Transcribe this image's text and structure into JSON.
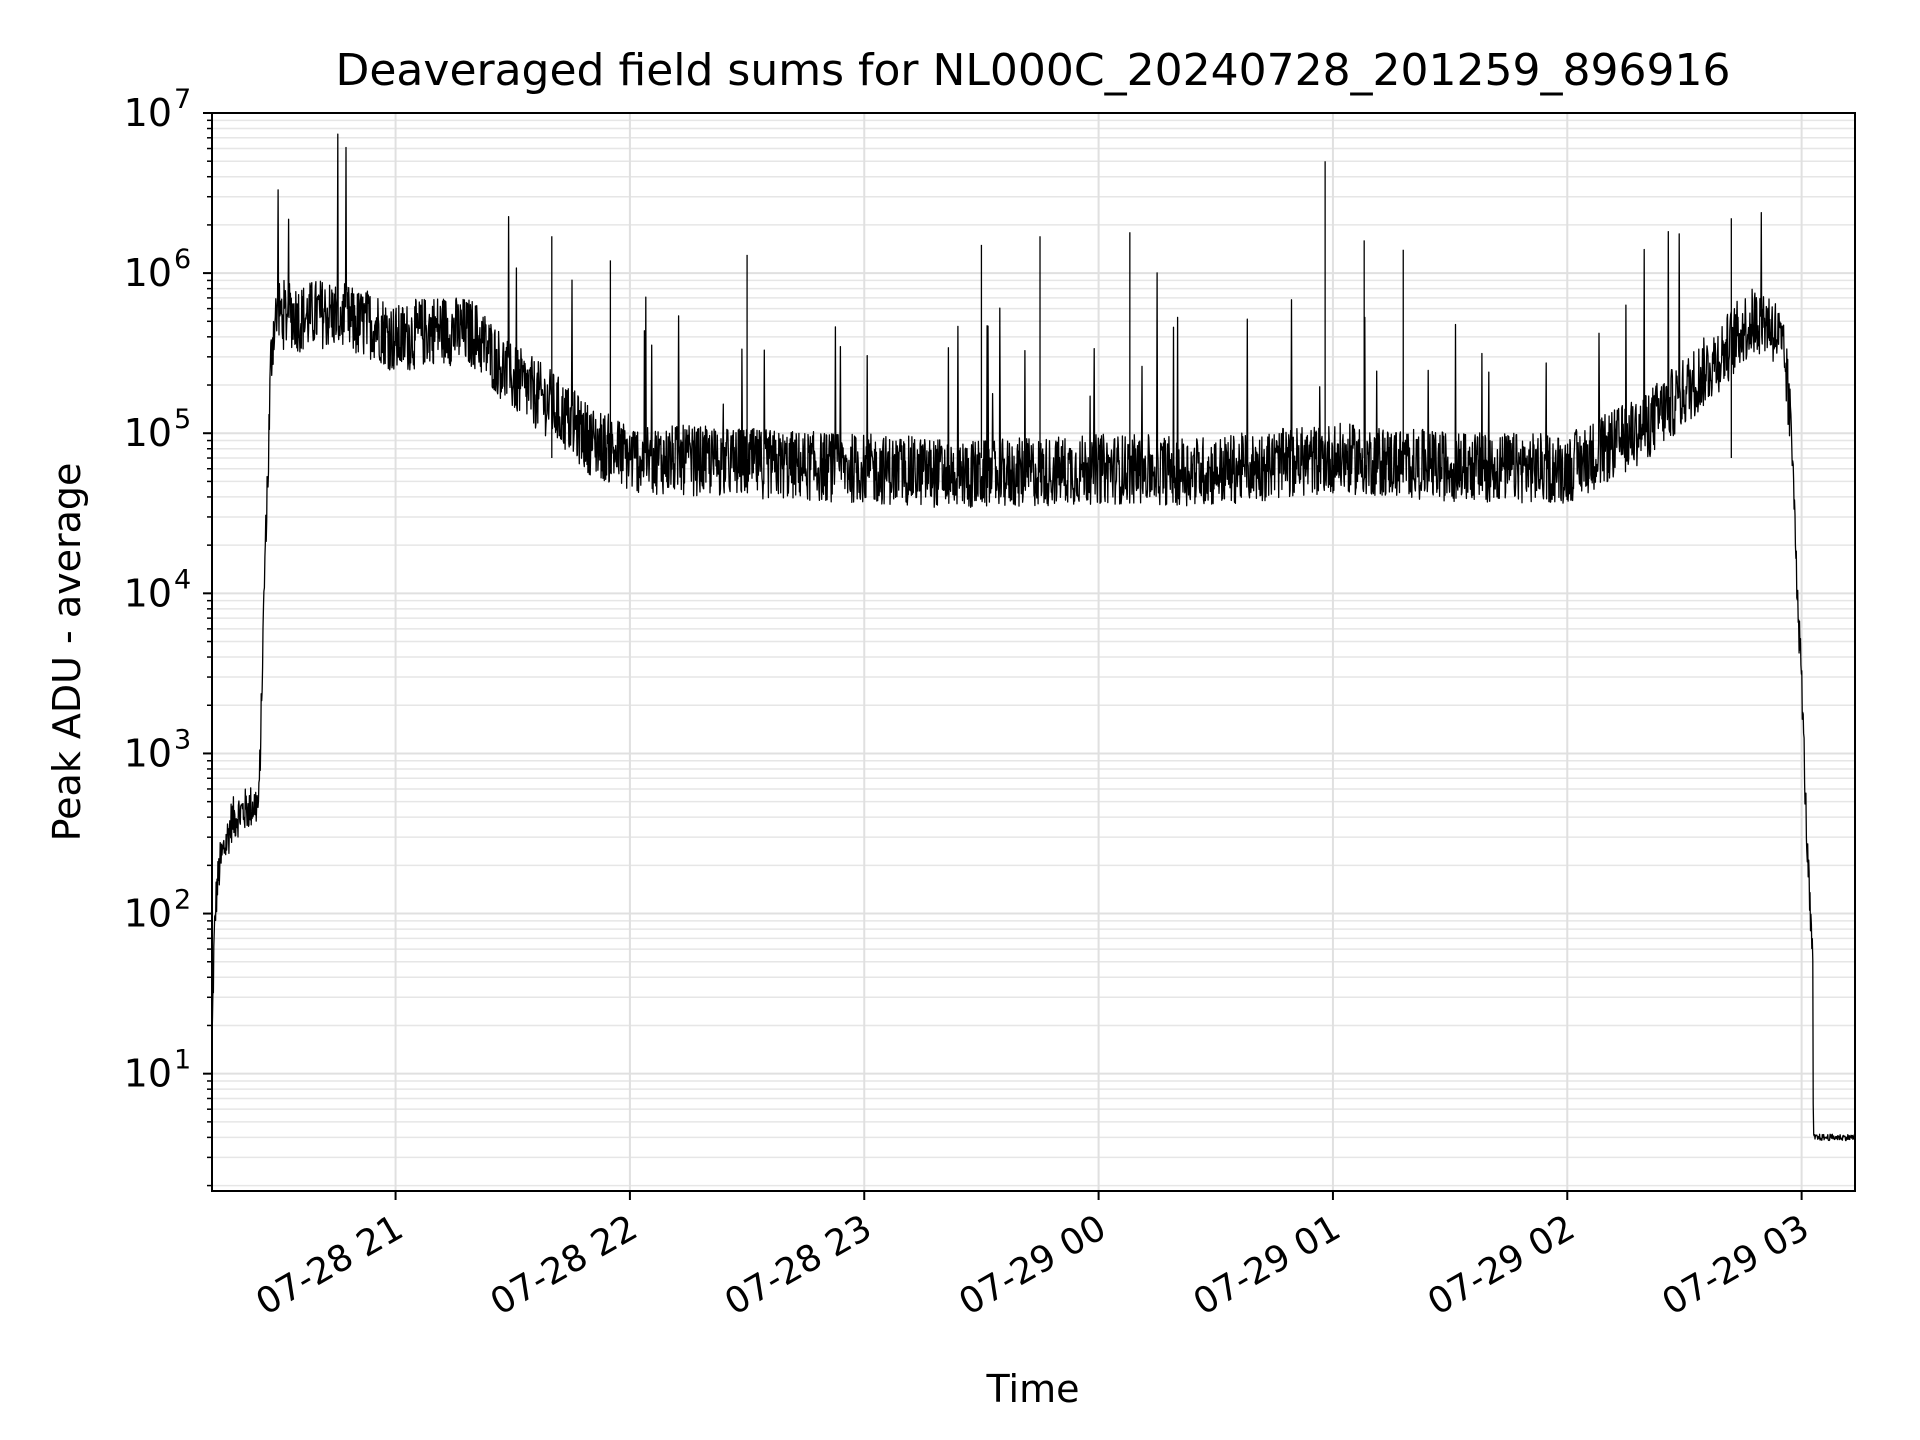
{
  "chart_data": {
    "type": "line",
    "title": "Deaveraged field sums for NL000C_20240728_201259_896916",
    "xlabel": "Time",
    "ylabel": "Peak ADU - average",
    "yscale": "log",
    "ylim": [
      1.85,
      10000000
    ],
    "xlim": [
      "2024-07-28 20:13:00",
      "2024-07-29 03:13:40"
    ],
    "grid": true,
    "line_color": "#000000",
    "x_ticks": [
      {
        "value": "2024-07-28 21:00",
        "label": "07-28 21"
      },
      {
        "value": "2024-07-28 22:00",
        "label": "07-28 22"
      },
      {
        "value": "2024-07-28 23:00",
        "label": "07-28 23"
      },
      {
        "value": "2024-07-29 00:00",
        "label": "07-29 00"
      },
      {
        "value": "2024-07-29 01:00",
        "label": "07-29 01"
      },
      {
        "value": "2024-07-29 02:00",
        "label": "07-29 02"
      },
      {
        "value": "2024-07-29 03:00",
        "label": "07-29 03"
      }
    ],
    "y_ticks": [
      {
        "value": 10,
        "base": "10",
        "exp": "1"
      },
      {
        "value": 100,
        "base": "10",
        "exp": "2"
      },
      {
        "value": 1000,
        "base": "10",
        "exp": "3"
      },
      {
        "value": 10000,
        "base": "10",
        "exp": "4"
      },
      {
        "value": 100000,
        "base": "10",
        "exp": "5"
      },
      {
        "value": 1000000,
        "base": "10",
        "exp": "6"
      },
      {
        "value": 10000000,
        "base": "10",
        "exp": "7"
      }
    ],
    "series": [
      {
        "x": [
          "2024-07-28 20:13:00",
          "2024-07-28 20:13:30",
          "2024-07-28 20:14:00",
          "2024-07-28 20:14:30",
          "2024-07-28 20:15:00",
          "2024-07-28 20:16:00",
          "2024-07-28 20:17:00",
          "2024-07-28 20:18:00",
          "2024-07-28 20:20:00",
          "2024-07-28 20:22:00",
          "2024-07-28 20:24:00",
          "2024-07-28 20:25:00",
          "2024-07-28 20:25:40",
          "2024-07-28 20:26:30",
          "2024-07-28 20:27:00",
          "2024-07-28 20:27:30",
          "2024-07-28 20:28:00",
          "2024-07-28 20:28:30",
          "2024-07-28 20:29:00",
          "2024-07-28 20:30:00",
          "2024-07-28 20:31:00",
          "2024-07-28 20:33:00",
          "2024-07-28 20:36:00",
          "2024-07-28 20:40:00",
          "2024-07-28 20:45:00",
          "2024-07-28 20:50:00",
          "2024-07-28 20:55:00",
          "2024-07-28 21:00:00",
          "2024-07-28 21:10:00",
          "2024-07-28 21:20:00",
          "2024-07-28 21:30:00",
          "2024-07-28 21:40:00",
          "2024-07-28 21:50:00",
          "2024-07-28 22:00:00",
          "2024-07-28 22:30:00",
          "2024-07-28 23:00:00",
          "2024-07-28 23:30:00",
          "2024-07-29 00:00:00",
          "2024-07-29 00:30:00",
          "2024-07-29 01:00:00",
          "2024-07-29 01:30:00",
          "2024-07-29 02:00:00",
          "2024-07-29 02:10:00",
          "2024-07-29 02:20:00",
          "2024-07-29 02:30:00",
          "2024-07-29 02:40:00",
          "2024-07-29 02:45:00",
          "2024-07-29 02:48:00",
          "2024-07-29 02:50:00",
          "2024-07-29 02:52:00",
          "2024-07-29 02:54:00",
          "2024-07-29 02:56:00",
          "2024-07-29 02:57:00",
          "2024-07-29 02:58:00",
          "2024-07-29 02:59:00",
          "2024-07-29 03:00:00",
          "2024-07-29 03:01:00",
          "2024-07-29 03:02:00",
          "2024-07-29 03:02:50",
          "2024-07-29 03:03:00",
          "2024-07-29 03:13:40"
        ],
        "y": [
          15,
          60,
          120,
          160,
          200,
          250,
          300,
          380,
          420,
          450,
          480,
          480,
          2000,
          15000,
          35000,
          80000,
          250000,
          400000,
          480000,
          560000,
          550000,
          560000,
          520000,
          560000,
          550000,
          480000,
          480000,
          380000,
          450000,
          420000,
          220000,
          150000,
          90000,
          70000,
          65000,
          60000,
          55000,
          60000,
          58000,
          70000,
          62000,
          60000,
          80000,
          110000,
          180000,
          320000,
          450000,
          500000,
          520000,
          480000,
          400000,
          250000,
          120000,
          60000,
          8000,
          3000,
          500,
          120,
          50,
          4,
          4
        ],
        "spikes": [
          {
            "x": "2024-07-28 21:40:00",
            "y": 1700000
          },
          {
            "x": "2024-07-28 21:55:00",
            "y": 1200000
          },
          {
            "x": "2024-07-28 22:30:00",
            "y": 1300000
          },
          {
            "x": "2024-07-28 23:30:00",
            "y": 1500000
          },
          {
            "x": "2024-07-28 23:45:00",
            "y": 1700000
          },
          {
            "x": "2024-07-29 00:08:00",
            "y": 1800000
          },
          {
            "x": "2024-07-29 00:58:00",
            "y": 5000000
          },
          {
            "x": "2024-07-29 01:08:00",
            "y": 1600000
          },
          {
            "x": "2024-07-29 01:18:00",
            "y": 1400000
          },
          {
            "x": "2024-07-29 02:42:00",
            "y": 2200000
          }
        ]
      }
    ]
  }
}
